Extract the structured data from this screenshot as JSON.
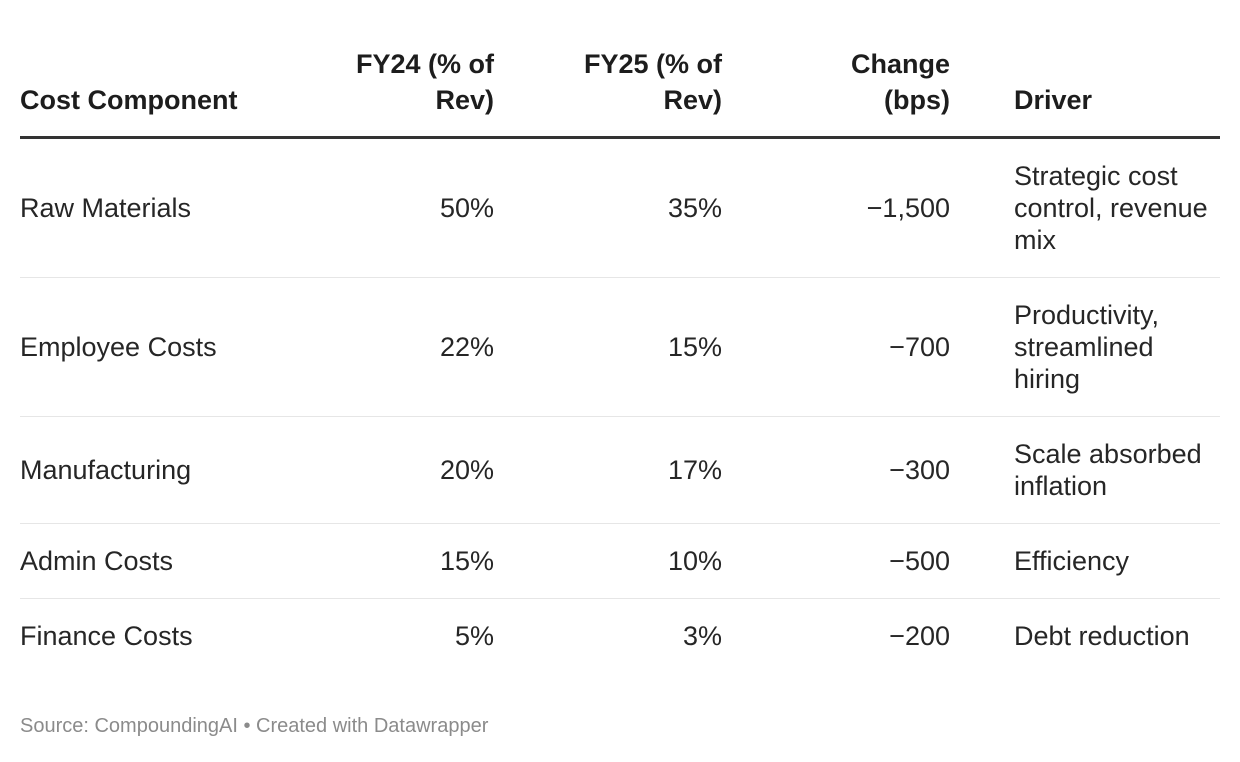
{
  "chart_data": {
    "type": "table",
    "columns": [
      "Cost Component",
      "FY24 (% of Rev)",
      "FY25 (% of Rev)",
      "Change (bps)",
      "Driver"
    ],
    "rows": [
      [
        "Raw Materials",
        "50%",
        "35%",
        "−1,500",
        "Strategic cost control, revenue mix"
      ],
      [
        "Employee Costs",
        "22%",
        "15%",
        "−700",
        "Productivity, streamlined hiring"
      ],
      [
        "Manufacturing",
        "20%",
        "17%",
        "−300",
        "Scale absorbed inflation"
      ],
      [
        "Admin Costs",
        "15%",
        "10%",
        "−500",
        "Efficiency"
      ],
      [
        "Finance Costs",
        "5%",
        "3%",
        "−200",
        "Debt reduction"
      ]
    ],
    "numeric_values": {
      "fy24_pct": [
        50,
        22,
        20,
        15,
        5
      ],
      "fy25_pct": [
        35,
        15,
        17,
        10,
        3
      ],
      "change_bps": [
        -1500,
        -700,
        -300,
        -500,
        -200
      ]
    },
    "title": "",
    "legend_position": "none",
    "grid": "row-dividers"
  },
  "footer": {
    "text": "Source: CompoundingAI • Created with Datawrapper"
  },
  "colors": {
    "header_rule": "#333333",
    "row_divider": "#e6e6e6",
    "text": "#262626",
    "footer_text": "#8b8b8b",
    "background": "#ffffff"
  }
}
